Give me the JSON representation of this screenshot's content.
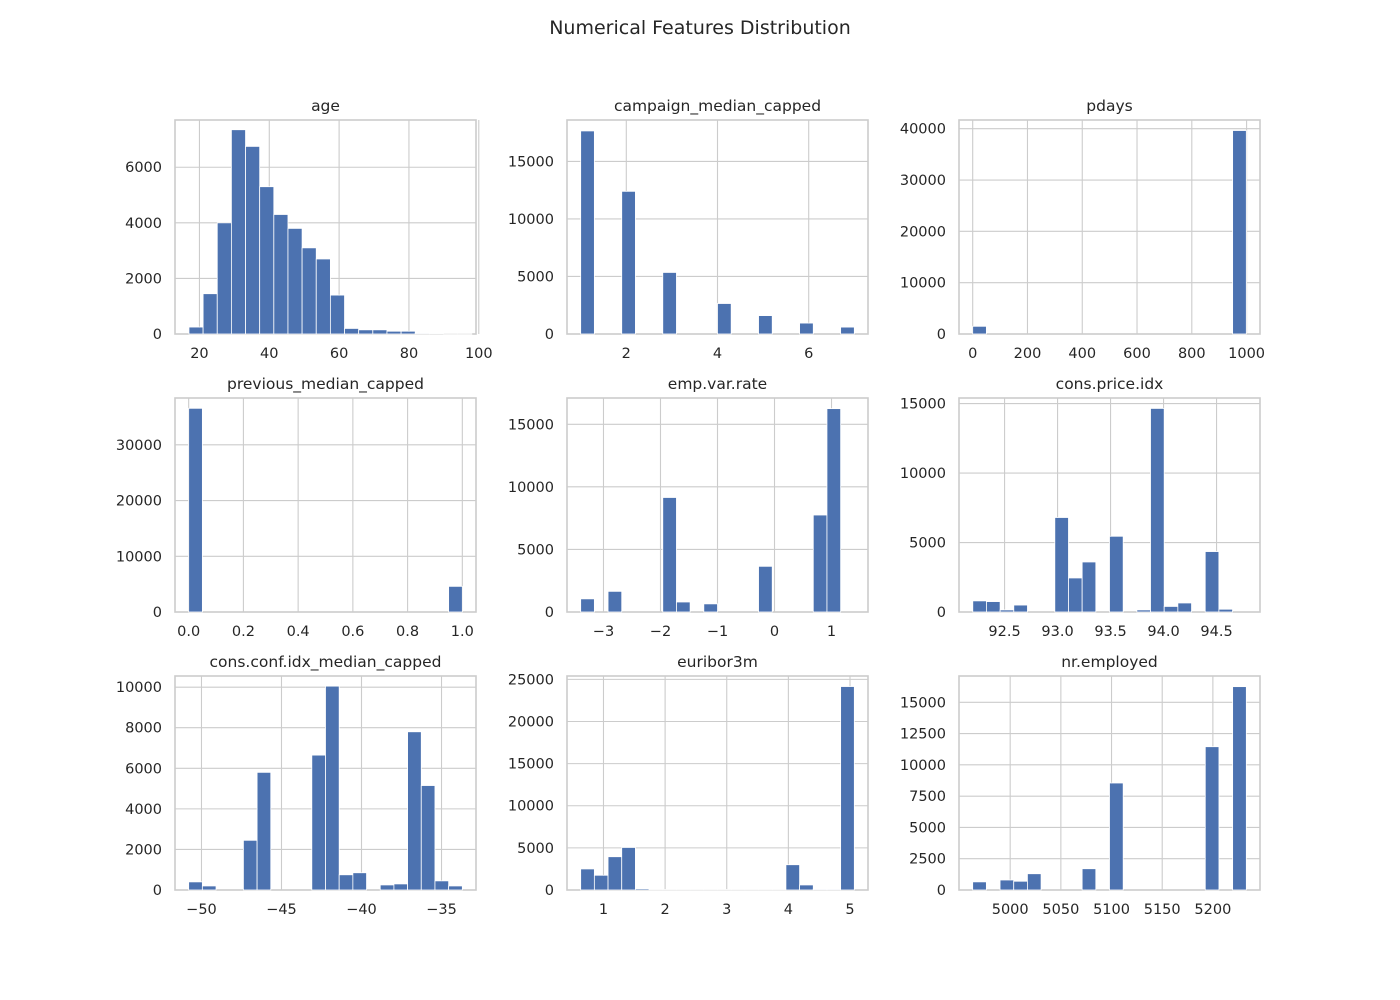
{
  "figure_title": "Numerical Features Distribution",
  "colors": {
    "bar": "#4c72b0",
    "grid": "#cccccc",
    "background": "#ffffff"
  },
  "chart_data": [
    {
      "type": "bar",
      "title": "age",
      "bin_edges": [
        17,
        21.05,
        25.1,
        29.15,
        33.2,
        37.25,
        41.3,
        45.35,
        49.4,
        53.45,
        57.5,
        61.55,
        65.6,
        69.65,
        73.7,
        77.75,
        81.8,
        85.85,
        89.9,
        93.95,
        98
      ],
      "values": [
        250,
        1450,
        4000,
        7350,
        6750,
        5300,
        4300,
        3800,
        3100,
        2700,
        1400,
        200,
        150,
        150,
        100,
        100,
        30,
        20,
        10,
        10
      ],
      "xlim": [
        13,
        99.2
      ],
      "ylim": [
        0,
        7700
      ],
      "xticks": [
        20,
        40,
        60,
        80,
        100
      ],
      "yticks": [
        0,
        2000,
        4000,
        6000
      ],
      "grid": true
    },
    {
      "type": "bar",
      "title": "campaign_median_capped",
      "bin_edges": [
        1,
        1.3,
        1.6,
        1.9,
        2.2,
        2.5,
        2.8,
        3.1,
        3.4,
        3.7,
        4,
        4.3,
        4.6,
        4.9,
        5.2,
        5.5,
        5.8,
        6.1,
        6.4,
        6.7,
        7
      ],
      "values": [
        17650,
        0,
        0,
        12400,
        0,
        0,
        5350,
        0,
        0,
        0,
        2650,
        0,
        0,
        1600,
        0,
        0,
        950,
        0,
        0,
        600
      ],
      "xlim": [
        0.7,
        7.3
      ],
      "ylim": [
        0,
        18600
      ],
      "xticks": [
        2,
        4,
        6
      ],
      "yticks": [
        0,
        5000,
        10000,
        15000
      ],
      "grid": true
    },
    {
      "type": "bar",
      "title": "pdays",
      "bin_edges": [
        0,
        49.95,
        99.9,
        149.85,
        199.8,
        249.75,
        299.7,
        349.65,
        399.6,
        449.55,
        499.5,
        549.45,
        599.4,
        649.35,
        699.3,
        749.25,
        799.2,
        849.15,
        899.1,
        949.05,
        999
      ],
      "values": [
        1500,
        0,
        0,
        0,
        0,
        0,
        0,
        0,
        0,
        0,
        0,
        0,
        0,
        0,
        0,
        0,
        0,
        0,
        0,
        39650
      ],
      "xlim": [
        -50,
        1049
      ],
      "ylim": [
        0,
        41700
      ],
      "xticks": [
        0,
        200,
        400,
        600,
        800,
        1000
      ],
      "yticks": [
        0,
        10000,
        20000,
        30000,
        40000
      ],
      "grid": true
    },
    {
      "type": "bar",
      "title": "previous_median_capped",
      "bin_edges": [
        0,
        0.05,
        0.1,
        0.15,
        0.2,
        0.25,
        0.3,
        0.35,
        0.4,
        0.45,
        0.5,
        0.55,
        0.6,
        0.65,
        0.7,
        0.75,
        0.8,
        0.85,
        0.9,
        0.95,
        1
      ],
      "values": [
        36550,
        0,
        0,
        0,
        0,
        0,
        0,
        0,
        0,
        0,
        0,
        0,
        0,
        0,
        0,
        0,
        0,
        0,
        0,
        4600
      ],
      "xlim": [
        -0.05,
        1.05
      ],
      "ylim": [
        0,
        38400
      ],
      "xticks": [
        0.0,
        0.2,
        0.4,
        0.6,
        0.8,
        1.0
      ],
      "yticks": [
        0,
        10000,
        20000,
        30000
      ],
      "grid": true
    },
    {
      "type": "bar",
      "title": "emp.var.rate",
      "bin_edges": [
        -3.4,
        -3.16,
        -2.92,
        -2.68,
        -2.44,
        -2.2,
        -1.96,
        -1.72,
        -1.48,
        -1.24,
        -1,
        -0.76,
        -0.52,
        -0.28,
        -0.04,
        0.2,
        0.44,
        0.68,
        0.92,
        1.16,
        1.4
      ],
      "values": [
        1050,
        0,
        1650,
        0,
        0,
        0,
        9150,
        800,
        0,
        650,
        0,
        0,
        0,
        3650,
        0,
        0,
        0,
        7750,
        16250,
        0
      ],
      "xlim": [
        -3.64,
        1.64
      ],
      "ylim": [
        0,
        17100
      ],
      "xticks": [
        -3,
        -2,
        -1,
        0,
        1
      ],
      "yticks": [
        0,
        5000,
        10000,
        15000
      ],
      "grid": true
    },
    {
      "type": "bar",
      "title": "cons.price.idx",
      "bin_edges": [
        92.2,
        92.329,
        92.458,
        92.587,
        92.716,
        92.845,
        92.974,
        93.103,
        93.232,
        93.361,
        93.49,
        93.619,
        93.748,
        93.877,
        94.006,
        94.135,
        94.264,
        94.393,
        94.522,
        94.651,
        94.78
      ],
      "values": [
        800,
        750,
        150,
        500,
        0,
        0,
        6800,
        2450,
        3600,
        0,
        5450,
        0,
        150,
        14650,
        400,
        650,
        0,
        4350,
        200,
        0
      ],
      "xlim": [
        92.07,
        94.91
      ],
      "ylim": [
        0,
        15400
      ],
      "xticks": [
        92.5,
        93.0,
        93.5,
        94.0,
        94.5
      ],
      "yticks": [
        0,
        5000,
        10000,
        15000
      ],
      "grid": true
    },
    {
      "type": "bar",
      "title": "cons.conf.idx_median_capped",
      "bin_edges": [
        -50.8,
        -49.945,
        -49.09,
        -48.235,
        -47.38,
        -46.525,
        -45.67,
        -44.815,
        -43.96,
        -43.105,
        -42.25,
        -41.395,
        -40.54,
        -39.685,
        -38.83,
        -37.975,
        -37.12,
        -36.265,
        -35.41,
        -34.555,
        -33.7
      ],
      "values": [
        400,
        200,
        0,
        0,
        2450,
        5800,
        0,
        0,
        0,
        6650,
        10050,
        750,
        850,
        0,
        250,
        300,
        7800,
        5150,
        450,
        200
      ],
      "xlim": [
        -51.655,
        -32.845
      ],
      "ylim": [
        0,
        10550
      ],
      "xticks": [
        -50,
        -45,
        -40,
        -35
      ],
      "yticks": [
        0,
        2000,
        4000,
        6000,
        8000,
        10000
      ],
      "grid": true
    },
    {
      "type": "bar",
      "title": "euribor3m",
      "bin_edges": [
        0.63,
        0.852,
        1.074,
        1.296,
        1.518,
        1.74,
        1.962,
        2.184,
        2.406,
        2.628,
        2.85,
        3.072,
        3.294,
        3.516,
        3.738,
        3.96,
        4.182,
        4.404,
        4.626,
        4.848,
        5.07
      ],
      "values": [
        2500,
        1750,
        3950,
        5050,
        150,
        50,
        50,
        50,
        50,
        50,
        50,
        50,
        50,
        50,
        50,
        3000,
        600,
        100,
        100,
        24150
      ],
      "xlim": [
        0.408,
        5.292
      ],
      "ylim": [
        0,
        25400
      ],
      "xticks": [
        1,
        2,
        3,
        4,
        5
      ],
      "yticks": [
        0,
        5000,
        10000,
        15000,
        20000,
        25000
      ],
      "grid": true
    },
    {
      "type": "bar",
      "title": "nr.employed",
      "bin_edges": [
        4963,
        4976.5,
        4990,
        5003.5,
        5017,
        5030.5,
        5044,
        5057.5,
        5071,
        5084.5,
        5098,
        5111.5,
        5125,
        5138.5,
        5152,
        5165.5,
        5179,
        5192.5,
        5206,
        5219.5,
        5233
      ],
      "values": [
        650,
        0,
        800,
        700,
        1300,
        0,
        0,
        0,
        1700,
        0,
        8550,
        0,
        0,
        0,
        0,
        0,
        0,
        11450,
        0,
        16250
      ],
      "xlim": [
        4949.5,
        5246.5
      ],
      "ylim": [
        0,
        17100
      ],
      "xticks": [
        5000,
        5050,
        5100,
        5150,
        5200
      ],
      "yticks": [
        0,
        2500,
        5000,
        7500,
        10000,
        12500,
        15000
      ],
      "grid": true
    }
  ]
}
